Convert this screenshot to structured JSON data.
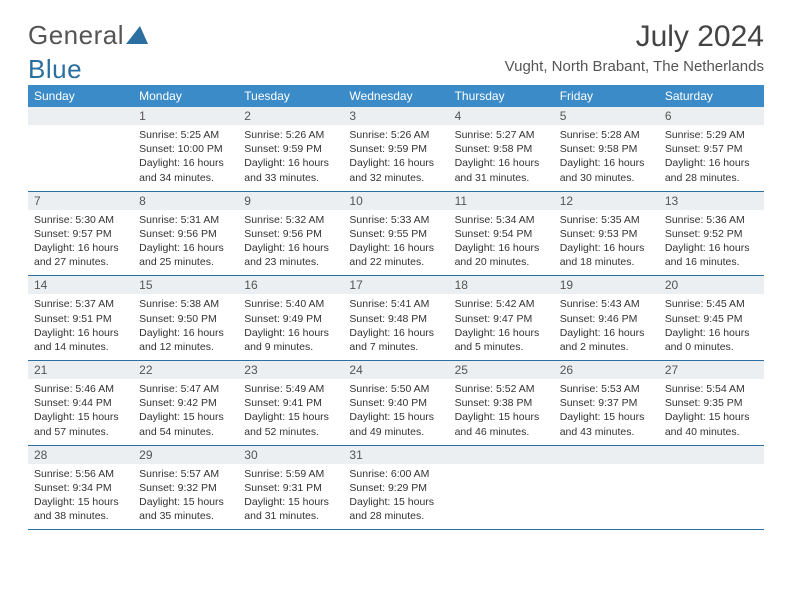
{
  "brand": {
    "part1": "General",
    "part2": "Blue",
    "tri_color": "#2a6fa0"
  },
  "title": "July 2024",
  "subtitle": "Vught, North Brabant, The Netherlands",
  "colors": {
    "header_bg": "#3b8bc9",
    "header_text": "#ffffff",
    "daynum_bg": "#eceff1",
    "border": "#2a6fa0",
    "text": "#333333"
  },
  "layout": {
    "columns": 7,
    "rows": 5,
    "header_fontsize": 12,
    "daynum_fontsize": 12,
    "daytext_fontsize": 10.5,
    "title_fontsize": 30,
    "subtitle_fontsize": 15
  },
  "daysOfWeek": [
    "Sunday",
    "Monday",
    "Tuesday",
    "Wednesday",
    "Thursday",
    "Friday",
    "Saturday"
  ],
  "weeks": [
    [
      {
        "num": "",
        "lines": []
      },
      {
        "num": "1",
        "lines": [
          "Sunrise: 5:25 AM",
          "Sunset: 10:00 PM",
          "Daylight: 16 hours",
          "and 34 minutes."
        ]
      },
      {
        "num": "2",
        "lines": [
          "Sunrise: 5:26 AM",
          "Sunset: 9:59 PM",
          "Daylight: 16 hours",
          "and 33 minutes."
        ]
      },
      {
        "num": "3",
        "lines": [
          "Sunrise: 5:26 AM",
          "Sunset: 9:59 PM",
          "Daylight: 16 hours",
          "and 32 minutes."
        ]
      },
      {
        "num": "4",
        "lines": [
          "Sunrise: 5:27 AM",
          "Sunset: 9:58 PM",
          "Daylight: 16 hours",
          "and 31 minutes."
        ]
      },
      {
        "num": "5",
        "lines": [
          "Sunrise: 5:28 AM",
          "Sunset: 9:58 PM",
          "Daylight: 16 hours",
          "and 30 minutes."
        ]
      },
      {
        "num": "6",
        "lines": [
          "Sunrise: 5:29 AM",
          "Sunset: 9:57 PM",
          "Daylight: 16 hours",
          "and 28 minutes."
        ]
      }
    ],
    [
      {
        "num": "7",
        "lines": [
          "Sunrise: 5:30 AM",
          "Sunset: 9:57 PM",
          "Daylight: 16 hours",
          "and 27 minutes."
        ]
      },
      {
        "num": "8",
        "lines": [
          "Sunrise: 5:31 AM",
          "Sunset: 9:56 PM",
          "Daylight: 16 hours",
          "and 25 minutes."
        ]
      },
      {
        "num": "9",
        "lines": [
          "Sunrise: 5:32 AM",
          "Sunset: 9:56 PM",
          "Daylight: 16 hours",
          "and 23 minutes."
        ]
      },
      {
        "num": "10",
        "lines": [
          "Sunrise: 5:33 AM",
          "Sunset: 9:55 PM",
          "Daylight: 16 hours",
          "and 22 minutes."
        ]
      },
      {
        "num": "11",
        "lines": [
          "Sunrise: 5:34 AM",
          "Sunset: 9:54 PM",
          "Daylight: 16 hours",
          "and 20 minutes."
        ]
      },
      {
        "num": "12",
        "lines": [
          "Sunrise: 5:35 AM",
          "Sunset: 9:53 PM",
          "Daylight: 16 hours",
          "and 18 minutes."
        ]
      },
      {
        "num": "13",
        "lines": [
          "Sunrise: 5:36 AM",
          "Sunset: 9:52 PM",
          "Daylight: 16 hours",
          "and 16 minutes."
        ]
      }
    ],
    [
      {
        "num": "14",
        "lines": [
          "Sunrise: 5:37 AM",
          "Sunset: 9:51 PM",
          "Daylight: 16 hours",
          "and 14 minutes."
        ]
      },
      {
        "num": "15",
        "lines": [
          "Sunrise: 5:38 AM",
          "Sunset: 9:50 PM",
          "Daylight: 16 hours",
          "and 12 minutes."
        ]
      },
      {
        "num": "16",
        "lines": [
          "Sunrise: 5:40 AM",
          "Sunset: 9:49 PM",
          "Daylight: 16 hours",
          "and 9 minutes."
        ]
      },
      {
        "num": "17",
        "lines": [
          "Sunrise: 5:41 AM",
          "Sunset: 9:48 PM",
          "Daylight: 16 hours",
          "and 7 minutes."
        ]
      },
      {
        "num": "18",
        "lines": [
          "Sunrise: 5:42 AM",
          "Sunset: 9:47 PM",
          "Daylight: 16 hours",
          "and 5 minutes."
        ]
      },
      {
        "num": "19",
        "lines": [
          "Sunrise: 5:43 AM",
          "Sunset: 9:46 PM",
          "Daylight: 16 hours",
          "and 2 minutes."
        ]
      },
      {
        "num": "20",
        "lines": [
          "Sunrise: 5:45 AM",
          "Sunset: 9:45 PM",
          "Daylight: 16 hours",
          "and 0 minutes."
        ]
      }
    ],
    [
      {
        "num": "21",
        "lines": [
          "Sunrise: 5:46 AM",
          "Sunset: 9:44 PM",
          "Daylight: 15 hours",
          "and 57 minutes."
        ]
      },
      {
        "num": "22",
        "lines": [
          "Sunrise: 5:47 AM",
          "Sunset: 9:42 PM",
          "Daylight: 15 hours",
          "and 54 minutes."
        ]
      },
      {
        "num": "23",
        "lines": [
          "Sunrise: 5:49 AM",
          "Sunset: 9:41 PM",
          "Daylight: 15 hours",
          "and 52 minutes."
        ]
      },
      {
        "num": "24",
        "lines": [
          "Sunrise: 5:50 AM",
          "Sunset: 9:40 PM",
          "Daylight: 15 hours",
          "and 49 minutes."
        ]
      },
      {
        "num": "25",
        "lines": [
          "Sunrise: 5:52 AM",
          "Sunset: 9:38 PM",
          "Daylight: 15 hours",
          "and 46 minutes."
        ]
      },
      {
        "num": "26",
        "lines": [
          "Sunrise: 5:53 AM",
          "Sunset: 9:37 PM",
          "Daylight: 15 hours",
          "and 43 minutes."
        ]
      },
      {
        "num": "27",
        "lines": [
          "Sunrise: 5:54 AM",
          "Sunset: 9:35 PM",
          "Daylight: 15 hours",
          "and 40 minutes."
        ]
      }
    ],
    [
      {
        "num": "28",
        "lines": [
          "Sunrise: 5:56 AM",
          "Sunset: 9:34 PM",
          "Daylight: 15 hours",
          "and 38 minutes."
        ]
      },
      {
        "num": "29",
        "lines": [
          "Sunrise: 5:57 AM",
          "Sunset: 9:32 PM",
          "Daylight: 15 hours",
          "and 35 minutes."
        ]
      },
      {
        "num": "30",
        "lines": [
          "Sunrise: 5:59 AM",
          "Sunset: 9:31 PM",
          "Daylight: 15 hours",
          "and 31 minutes."
        ]
      },
      {
        "num": "31",
        "lines": [
          "Sunrise: 6:00 AM",
          "Sunset: 9:29 PM",
          "Daylight: 15 hours",
          "and 28 minutes."
        ]
      },
      {
        "num": "",
        "lines": []
      },
      {
        "num": "",
        "lines": []
      },
      {
        "num": "",
        "lines": []
      }
    ]
  ]
}
